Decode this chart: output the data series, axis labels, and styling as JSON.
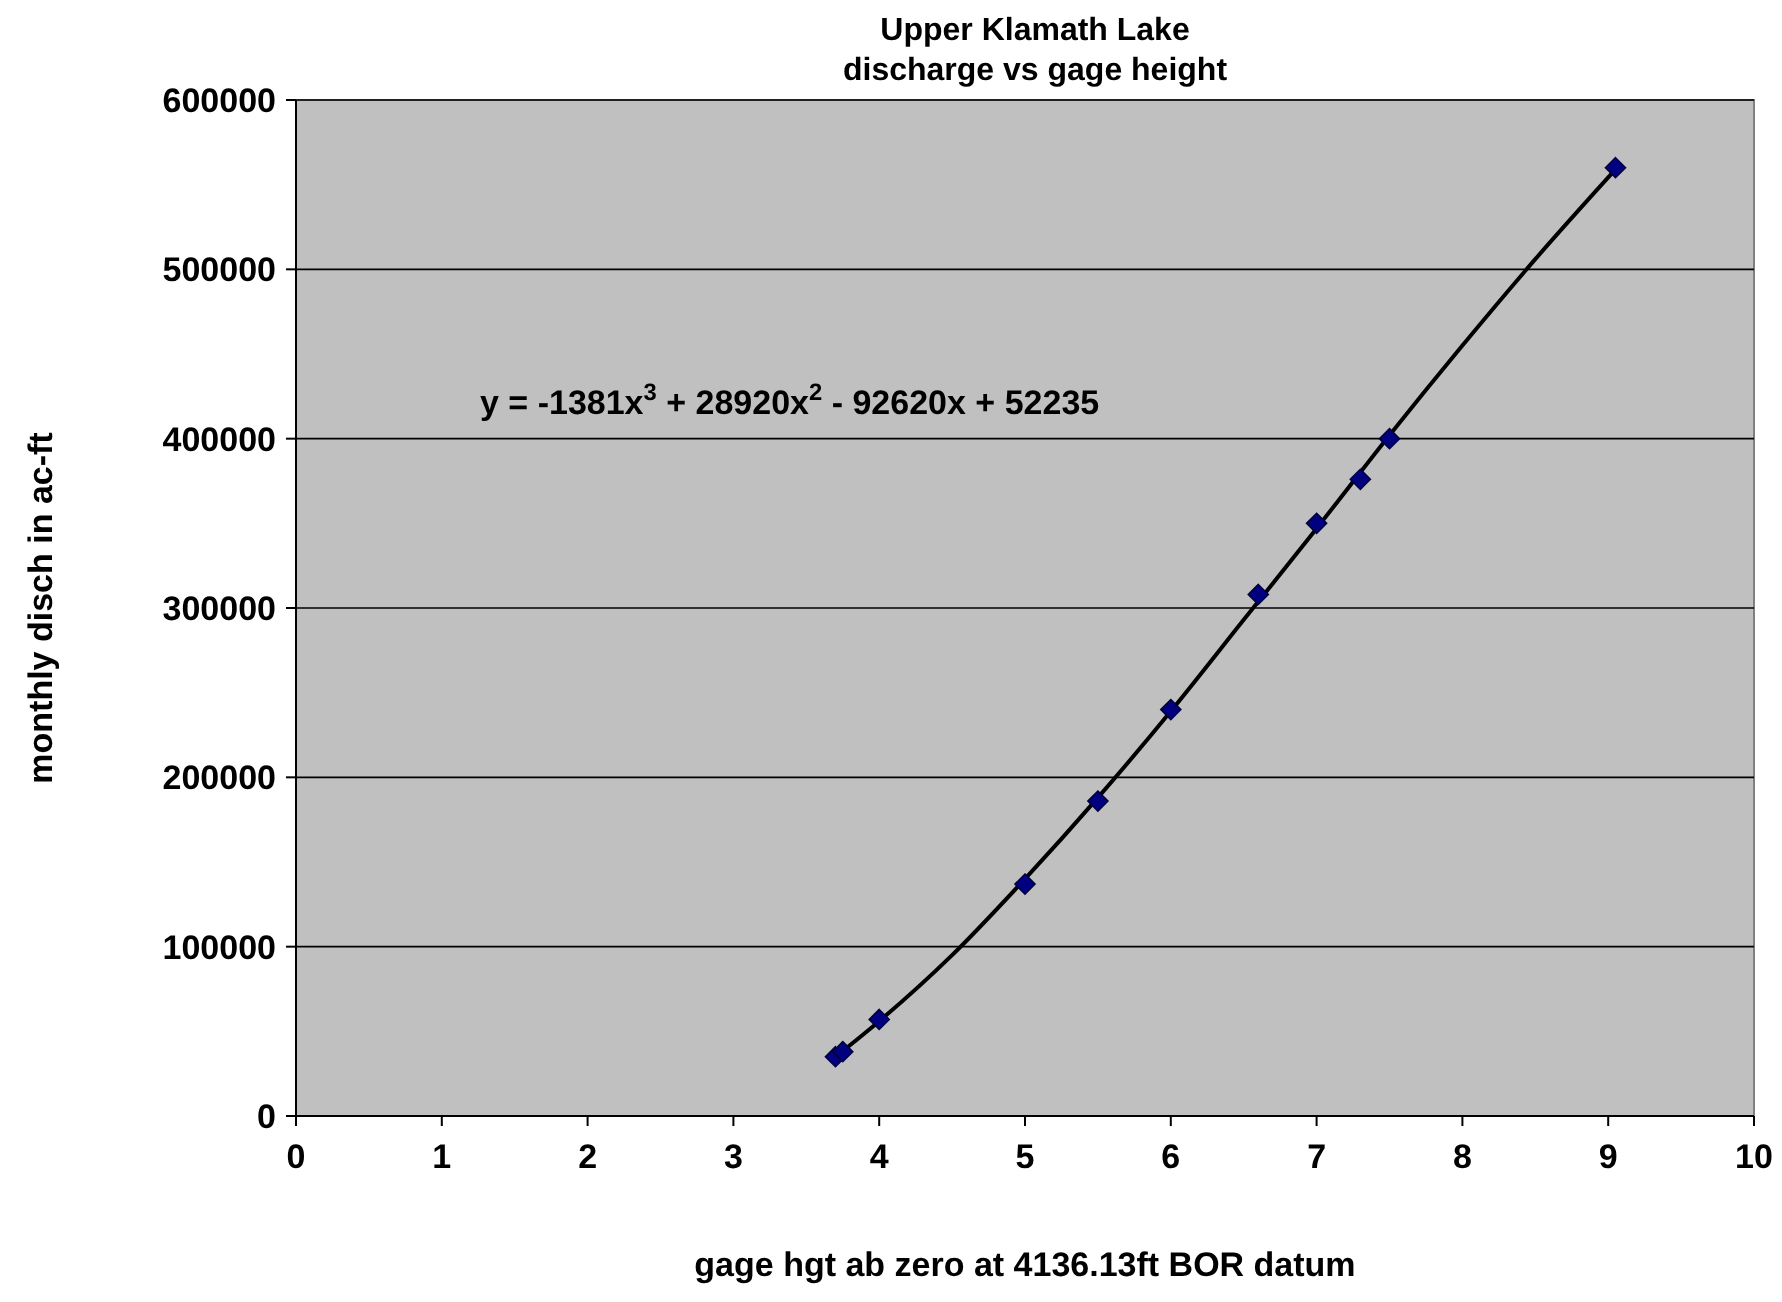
{
  "chart_data": {
    "type": "scatter",
    "title": "Upper Klamath Lake",
    "subtitle": "discharge vs gage height",
    "xlabel": "gage hgt ab zero at 4136.13ft BOR datum",
    "ylabel": "monthly disch in ac-ft",
    "xlim": [
      0,
      10
    ],
    "xticks": [
      0,
      1,
      2,
      3,
      4,
      5,
      6,
      7,
      8,
      9,
      10
    ],
    "ylim": [
      0,
      600000
    ],
    "yticks": [
      0,
      100000,
      200000,
      300000,
      400000,
      500000,
      600000
    ],
    "grid": "y",
    "marker": "diamond",
    "annotations": [
      "y = -1381x$^{3}$ + 28920x$^{2}$ - 92620x + 52235"
    ],
    "series": [
      {
        "color": "#000080",
        "x": [
          3.7,
          3.75,
          4,
          5,
          5.5,
          6,
          6.6,
          7,
          7.3,
          7.5,
          9.05
        ],
        "values": [
          35000,
          38000,
          57000,
          137000,
          186000,
          240000,
          308000,
          350000,
          376000,
          400000,
          560000
        ]
      },
      {
        "type": "line",
        "color": "#000000",
        "marker": "none",
        "line_style": "solid",
        "x": [
          3.7,
          4,
          4.5,
          5,
          5.5,
          6,
          6.5,
          7,
          7.5,
          8,
          8.5,
          9.05
        ],
        "values": [
          35000,
          56000,
          95000,
          140000,
          188000,
          239000,
          293000,
          347000,
          402000,
          455000,
          506000,
          559000
        ]
      }
    ]
  }
}
